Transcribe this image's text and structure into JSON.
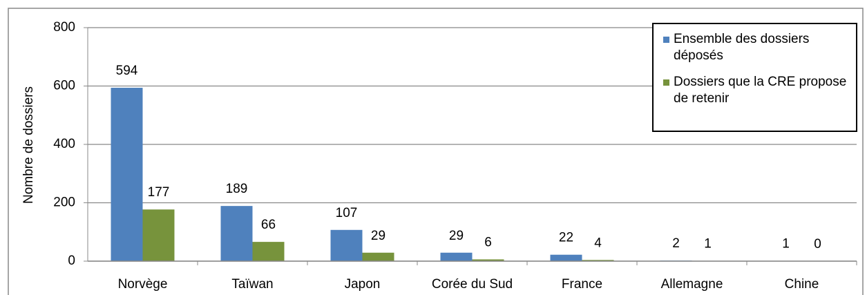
{
  "chart_data": {
    "type": "bar",
    "y_label": "Nombre de dossiers",
    "categories": [
      "Norvège",
      "Taïwan",
      "Japon",
      "Corée du Sud",
      "France",
      "Allemagne",
      "Chine"
    ],
    "series": [
      {
        "name": "Ensemble des dossiers déposés",
        "color": "#4f81bd",
        "values": [
          594,
          189,
          107,
          29,
          22,
          2,
          1
        ]
      },
      {
        "name": "Dossiers que la CRE propose de retenir",
        "color": "#77933c",
        "values": [
          177,
          66,
          29,
          6,
          4,
          1,
          0
        ]
      }
    ],
    "ylim": [
      0,
      800
    ],
    "yticks": [
      0,
      200,
      400,
      600,
      800
    ],
    "grid": true,
    "legend": "top-right"
  }
}
